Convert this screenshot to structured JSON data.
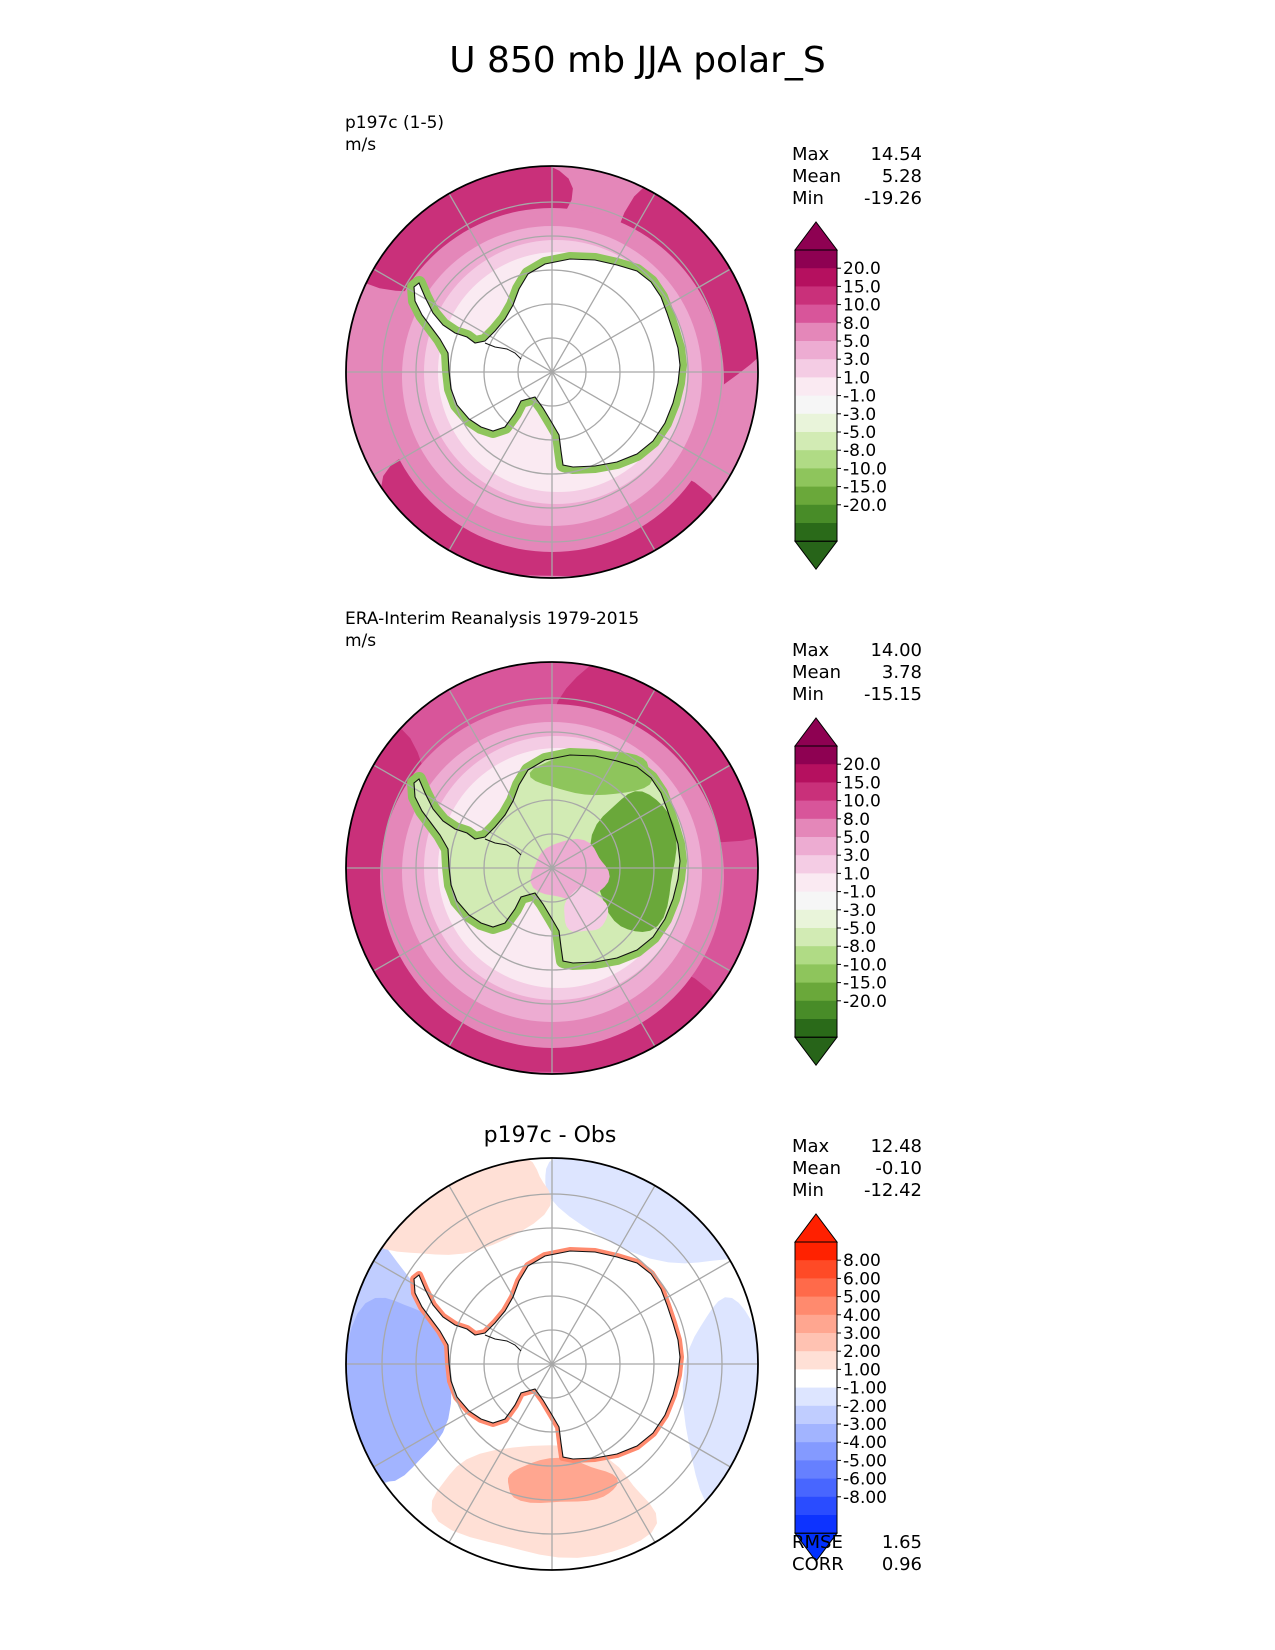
{
  "figure": {
    "title": "U 850 mb JJA polar_S"
  },
  "panels": [
    {
      "label_line1": "p197c (1-5)",
      "label_line2": "m/s",
      "title": "",
      "stats": [
        {
          "name": "Max",
          "value": "14.54"
        },
        {
          "name": "Mean",
          "value": "5.28"
        },
        {
          "name": "Min",
          "value": "-19.26"
        }
      ],
      "colorbar": {
        "labels": [
          "20.0",
          "15.0",
          "10.0",
          "8.0",
          "5.0",
          "3.0",
          "1.0",
          "-1.0",
          "-3.0",
          "-5.0",
          "-8.0",
          "-10.0",
          "-15.0",
          "-20.0"
        ],
        "colors": [
          "#8e0152",
          "#b5105f",
          "#c9307a",
          "#d8559a",
          "#e487b9",
          "#edacd2",
          "#f4cce4",
          "#faeaf2",
          "#f6f6f6",
          "#e9f4da",
          "#d2ebb4",
          "#b0db85",
          "#8ec55c",
          "#6aa83a",
          "#488c28",
          "#2a6a19"
        ],
        "top_color": "#8e0152",
        "bottom_color": "#276419"
      }
    },
    {
      "label_line1": "ERA-Interim Reanalysis 1979-2015",
      "label_line2": "m/s",
      "title": "",
      "stats": [
        {
          "name": "Max",
          "value": "14.00"
        },
        {
          "name": "Mean",
          "value": "3.78"
        },
        {
          "name": "Min",
          "value": "-15.15"
        }
      ],
      "colorbar": {
        "labels": [
          "20.0",
          "15.0",
          "10.0",
          "8.0",
          "5.0",
          "3.0",
          "1.0",
          "-1.0",
          "-3.0",
          "-5.0",
          "-8.0",
          "-10.0",
          "-15.0",
          "-20.0"
        ],
        "colors": [
          "#8e0152",
          "#b5105f",
          "#c9307a",
          "#d8559a",
          "#e487b9",
          "#edacd2",
          "#f4cce4",
          "#faeaf2",
          "#f6f6f6",
          "#e9f4da",
          "#d2ebb4",
          "#b0db85",
          "#8ec55c",
          "#6aa83a",
          "#488c28",
          "#2a6a19"
        ],
        "top_color": "#8e0152",
        "bottom_color": "#276419"
      }
    },
    {
      "label_line1": "",
      "label_line2": "",
      "title": "p197c - Obs",
      "stats": [
        {
          "name": "Max",
          "value": "12.48"
        },
        {
          "name": "Mean",
          "value": "-0.10"
        },
        {
          "name": "Min",
          "value": "-12.42"
        }
      ],
      "extra_stats": [
        {
          "name": "RMSE",
          "value": "1.65"
        },
        {
          "name": "CORR",
          "value": "0.96"
        }
      ],
      "colorbar": {
        "labels": [
          "8.00",
          "6.00",
          "5.00",
          "4.00",
          "3.00",
          "2.00",
          "1.00",
          "-1.00",
          "-2.00",
          "-3.00",
          "-4.00",
          "-5.00",
          "-6.00",
          "-8.00"
        ],
        "colors": [
          "#ff2200",
          "#ff4a26",
          "#ff6a4a",
          "#ff8a6e",
          "#ffa690",
          "#ffc2b2",
          "#ffe0d6",
          "#ffffff",
          "#dde5ff",
          "#c0cdff",
          "#a2b4ff",
          "#849aff",
          "#6680ff",
          "#4866ff",
          "#2a4cff",
          "#0d33ff"
        ],
        "top_color": "#ff2000",
        "bottom_color": "#0030ff"
      }
    }
  ]
}
